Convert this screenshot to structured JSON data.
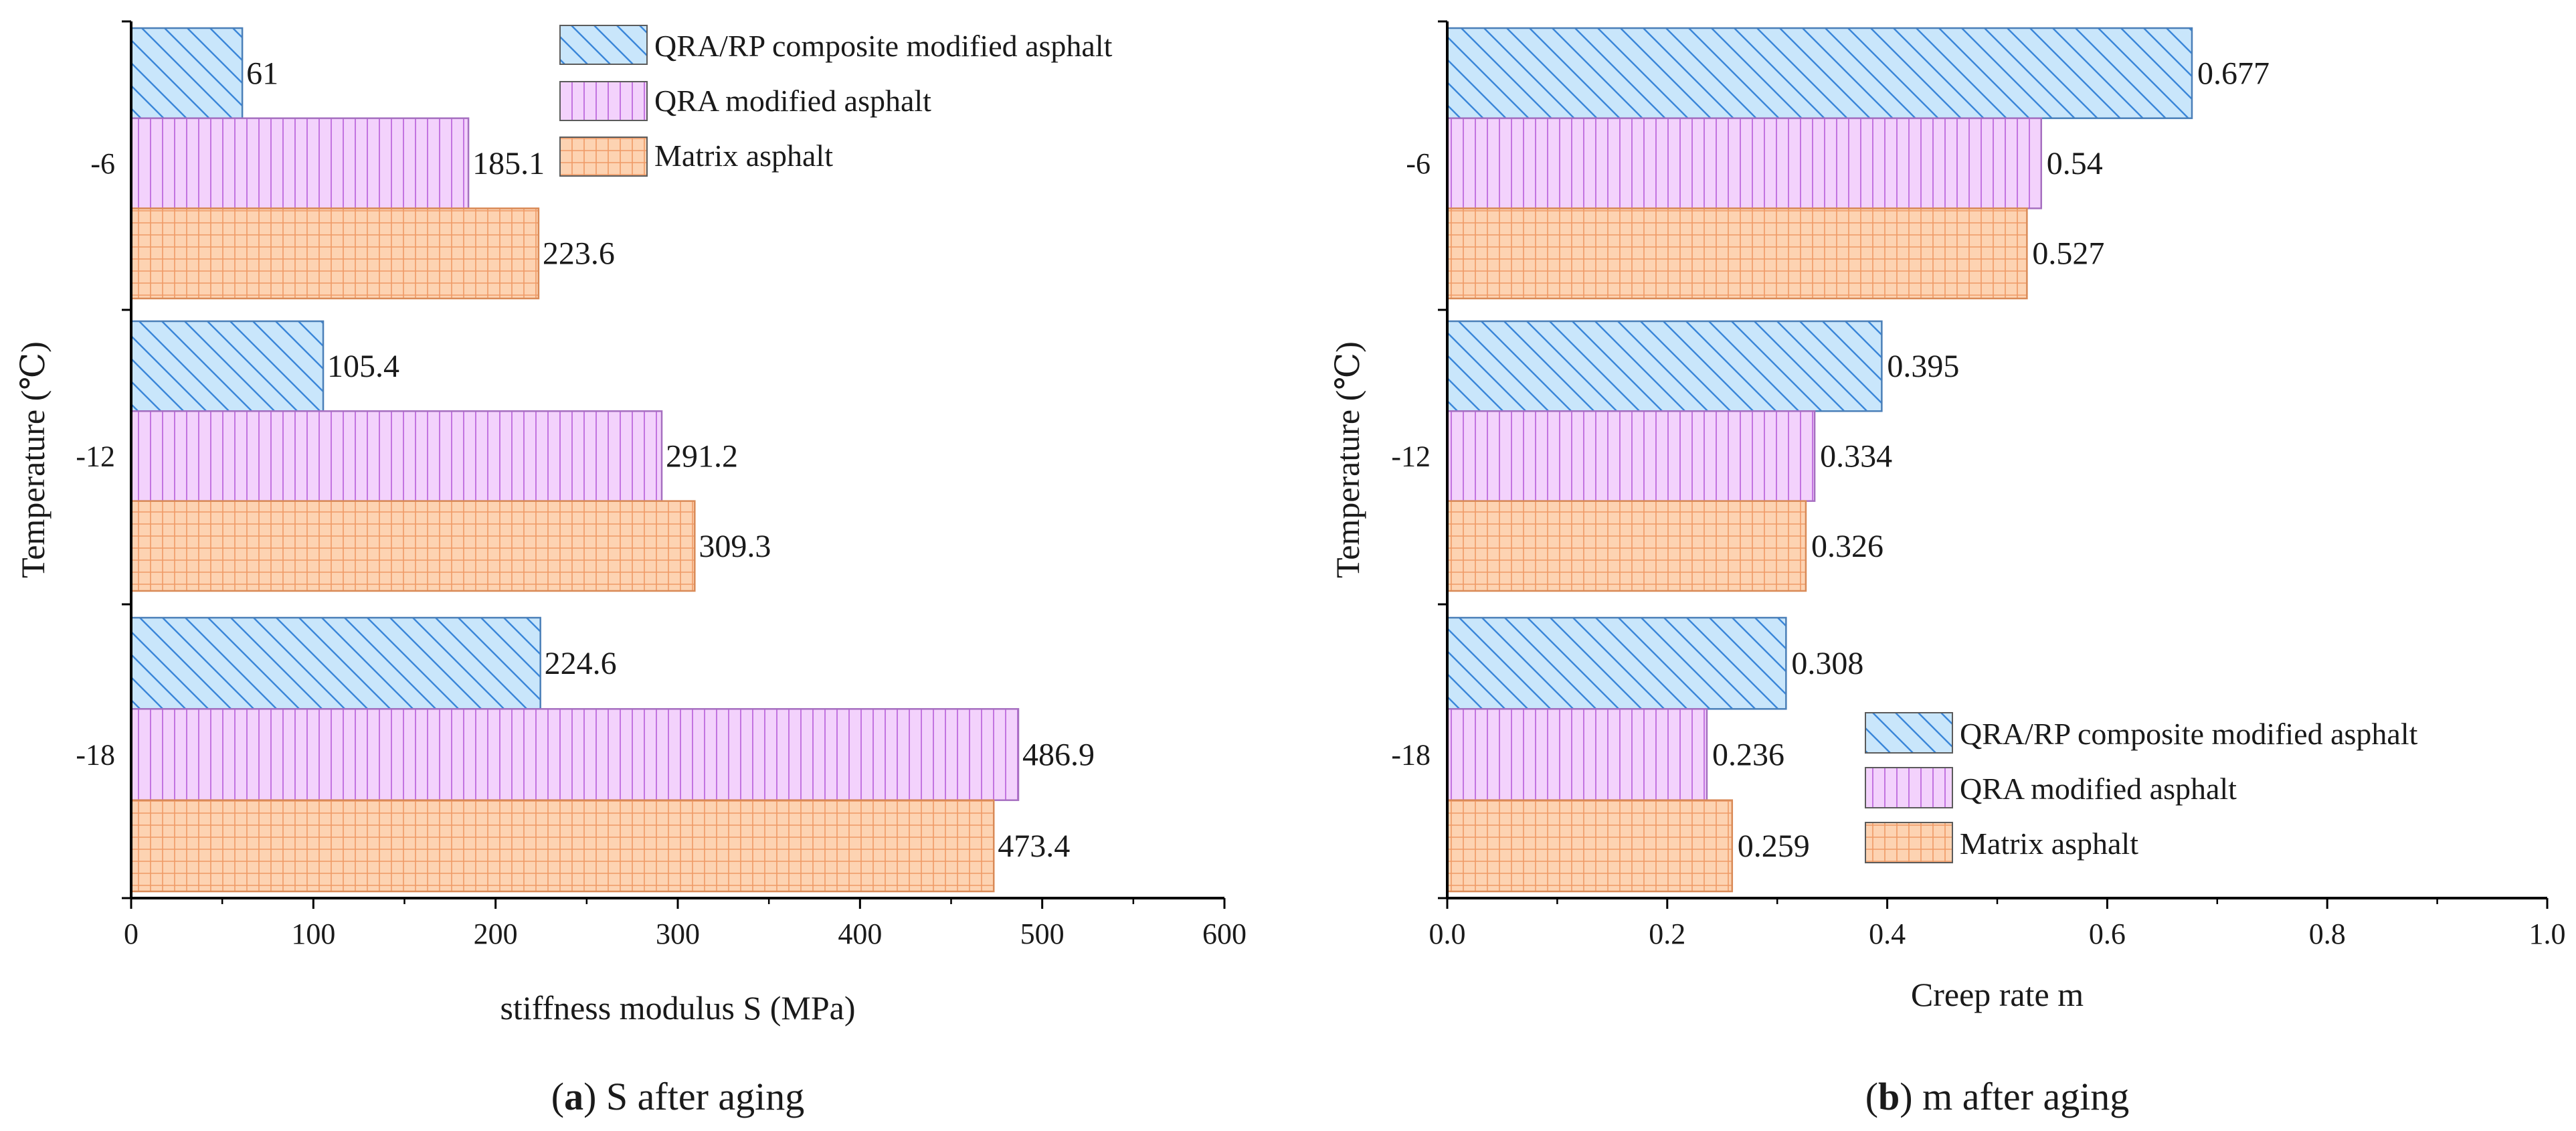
{
  "colors": {
    "composite_fill": "#c9e6fb",
    "composite_stroke": "#3a86d9",
    "qra_fill": "#f3d2fc",
    "qra_stroke": "#c374e0",
    "matrix_fill": "#fdd3b2",
    "matrix_stroke": "#ef9a66",
    "axis": "#000000"
  },
  "chart_data": [
    {
      "type": "bar",
      "orientation": "horizontal",
      "categories": [
        "-6",
        "-12",
        "-18"
      ],
      "series": [
        {
          "name": "QRA/RP composite modified asphalt",
          "values": [
            61,
            105.4,
            224.6
          ]
        },
        {
          "name": "QRA modified asphalt",
          "values": [
            185.1,
            291.2,
            486.9
          ]
        },
        {
          "name": "Matrix asphalt",
          "values": [
            223.6,
            309.3,
            473.4
          ]
        }
      ],
      "data_labels": [
        [
          "61",
          "105.4",
          "224.6"
        ],
        [
          "185.1",
          "291.2",
          "486.9"
        ],
        [
          "223.6",
          "309.3",
          "473.4"
        ]
      ],
      "xlabel": "stiffness modulus S (MPa)",
      "ylabel": "Temperature (℃)",
      "xlim": [
        0,
        600
      ],
      "xticks": [
        "0",
        "100",
        "200",
        "300",
        "400",
        "500",
        "600"
      ],
      "grid": false,
      "legend_position": "top-right",
      "caption": {
        "letter": "a",
        "open": "(",
        "close": ")",
        "text": " S after aging"
      }
    },
    {
      "type": "bar",
      "orientation": "horizontal",
      "categories": [
        "-6",
        "-12",
        "-18"
      ],
      "series": [
        {
          "name": "QRA/RP composite modified asphalt",
          "values": [
            0.677,
            0.395,
            0.308
          ]
        },
        {
          "name": "QRA modified asphalt",
          "values": [
            0.54,
            0.334,
            0.236
          ]
        },
        {
          "name": "Matrix asphalt",
          "values": [
            0.527,
            0.326,
            0.259
          ]
        }
      ],
      "data_labels": [
        [
          "0.677",
          "0.395",
          "0.308"
        ],
        [
          "0.54",
          "0.334",
          "0.236"
        ],
        [
          "0.527",
          "0.326",
          "0.259"
        ]
      ],
      "xlabel": "Creep rate m",
      "ylabel": "Temperature (℃)",
      "xlim": [
        0,
        1
      ],
      "xticks": [
        "0.0",
        "0.2",
        "0.4",
        "0.6",
        "0.8",
        "1.0"
      ],
      "grid": false,
      "legend_position": "bottom-right",
      "caption": {
        "letter": "b",
        "open": "(",
        "close": ")",
        "text": " m after aging"
      }
    }
  ]
}
